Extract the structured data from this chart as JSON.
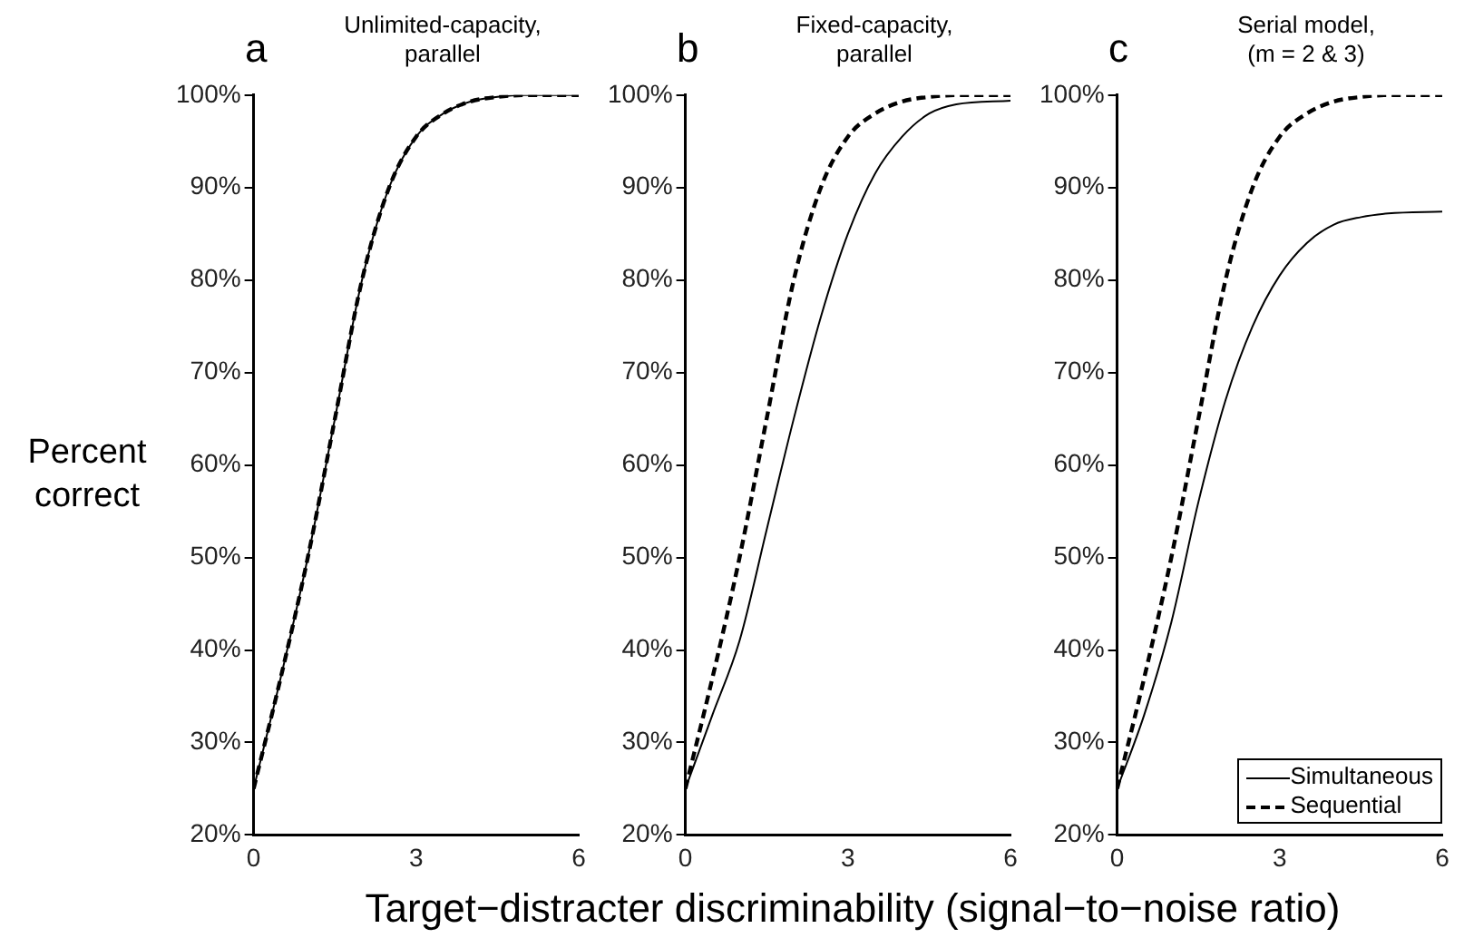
{
  "chart_data": [
    {
      "type": "line",
      "title": "a",
      "subtitle": "Unlimited-capacity, parallel",
      "xlabel": "Target−distracter discriminability (signal−to−noise ratio)",
      "ylabel": "Percent correct",
      "x": [
        0,
        0.5,
        1,
        1.5,
        2,
        2.5,
        3,
        3.5,
        4,
        4.5,
        5,
        6
      ],
      "xlim": [
        0,
        6
      ],
      "xticks": [
        0,
        3,
        6
      ],
      "ylim": [
        20,
        100
      ],
      "yticks": [
        {
          "value": 20,
          "label": "20%"
        },
        {
          "value": 30,
          "label": "30%"
        },
        {
          "value": 40,
          "label": "40%"
        },
        {
          "value": 50,
          "label": "50%"
        },
        {
          "value": 60,
          "label": "60%"
        },
        {
          "value": 70,
          "label": "70%"
        },
        {
          "value": 80,
          "label": "80%"
        },
        {
          "value": 90,
          "label": "90%"
        },
        {
          "value": 100,
          "label": "100%"
        }
      ],
      "grid": false,
      "legend": false,
      "marker": "none",
      "series": [
        {
          "color": "#000000",
          "line_style": "solid",
          "values": [
            25,
            37,
            50,
            65,
            80,
            90,
            95.5,
            98,
            99.3,
            99.8,
            100,
            100
          ]
        },
        {
          "color": "#000000",
          "line_style": "dashed",
          "values": [
            25,
            37,
            50,
            65,
            80,
            90,
            95.5,
            98,
            99.3,
            99.8,
            100,
            100
          ]
        }
      ]
    },
    {
      "type": "line",
      "title": "b",
      "subtitle": "Fixed-capacity, parallel",
      "x": [
        0,
        0.5,
        1,
        1.5,
        2,
        2.5,
        3,
        3.5,
        4,
        4.5,
        5,
        6
      ],
      "xlim": [
        0,
        6
      ],
      "xticks": [
        0,
        3,
        6
      ],
      "ylim": [
        20,
        100
      ],
      "yticks": [
        {
          "value": 20,
          "label": "20%"
        },
        {
          "value": 30,
          "label": "30%"
        },
        {
          "value": 40,
          "label": "40%"
        },
        {
          "value": 50,
          "label": "50%"
        },
        {
          "value": 60,
          "label": "60%"
        },
        {
          "value": 70,
          "label": "70%"
        },
        {
          "value": 80,
          "label": "80%"
        },
        {
          "value": 90,
          "label": "90%"
        },
        {
          "value": 100,
          "label": "100%"
        }
      ],
      "grid": false,
      "legend": false,
      "marker": "none",
      "series": [
        {
          "color": "#000000",
          "line_style": "solid",
          "values": [
            25,
            33,
            41,
            53,
            65,
            76,
            85,
            91.5,
            95.5,
            98,
            99,
            99.4
          ]
        },
        {
          "color": "#000000",
          "line_style": "dashed",
          "values": [
            25,
            37,
            50,
            65,
            80,
            90,
            95.5,
            98,
            99.3,
            99.8,
            100,
            100
          ]
        }
      ]
    },
    {
      "type": "line",
      "title": "c",
      "subtitle": "Serial model, (m = 2 & 3)",
      "x": [
        0,
        0.5,
        1,
        1.5,
        2,
        2.5,
        3,
        3.5,
        4,
        4.5,
        5,
        6
      ],
      "xlim": [
        0,
        6
      ],
      "xticks": [
        0,
        3,
        6
      ],
      "ylim": [
        20,
        100
      ],
      "yticks": [
        {
          "value": 20,
          "label": "20%"
        },
        {
          "value": 30,
          "label": "30%"
        },
        {
          "value": 40,
          "label": "40%"
        },
        {
          "value": 50,
          "label": "50%"
        },
        {
          "value": 60,
          "label": "60%"
        },
        {
          "value": 70,
          "label": "70%"
        },
        {
          "value": 80,
          "label": "80%"
        },
        {
          "value": 90,
          "label": "90%"
        },
        {
          "value": 100,
          "label": "100%"
        }
      ],
      "grid": false,
      "legend": "bottom right",
      "marker": "none",
      "series": [
        {
          "name": "Simultaneous",
          "color": "#000000",
          "line_style": "solid",
          "values": [
            25,
            33,
            43,
            56,
            67,
            75,
            80.5,
            84,
            86,
            86.8,
            87.2,
            87.4
          ]
        },
        {
          "name": "Sequential",
          "color": "#000000",
          "line_style": "dashed",
          "values": [
            25,
            37,
            50,
            65,
            80,
            90,
            95.5,
            98,
            99.3,
            99.8,
            100,
            100
          ]
        }
      ]
    }
  ]
}
